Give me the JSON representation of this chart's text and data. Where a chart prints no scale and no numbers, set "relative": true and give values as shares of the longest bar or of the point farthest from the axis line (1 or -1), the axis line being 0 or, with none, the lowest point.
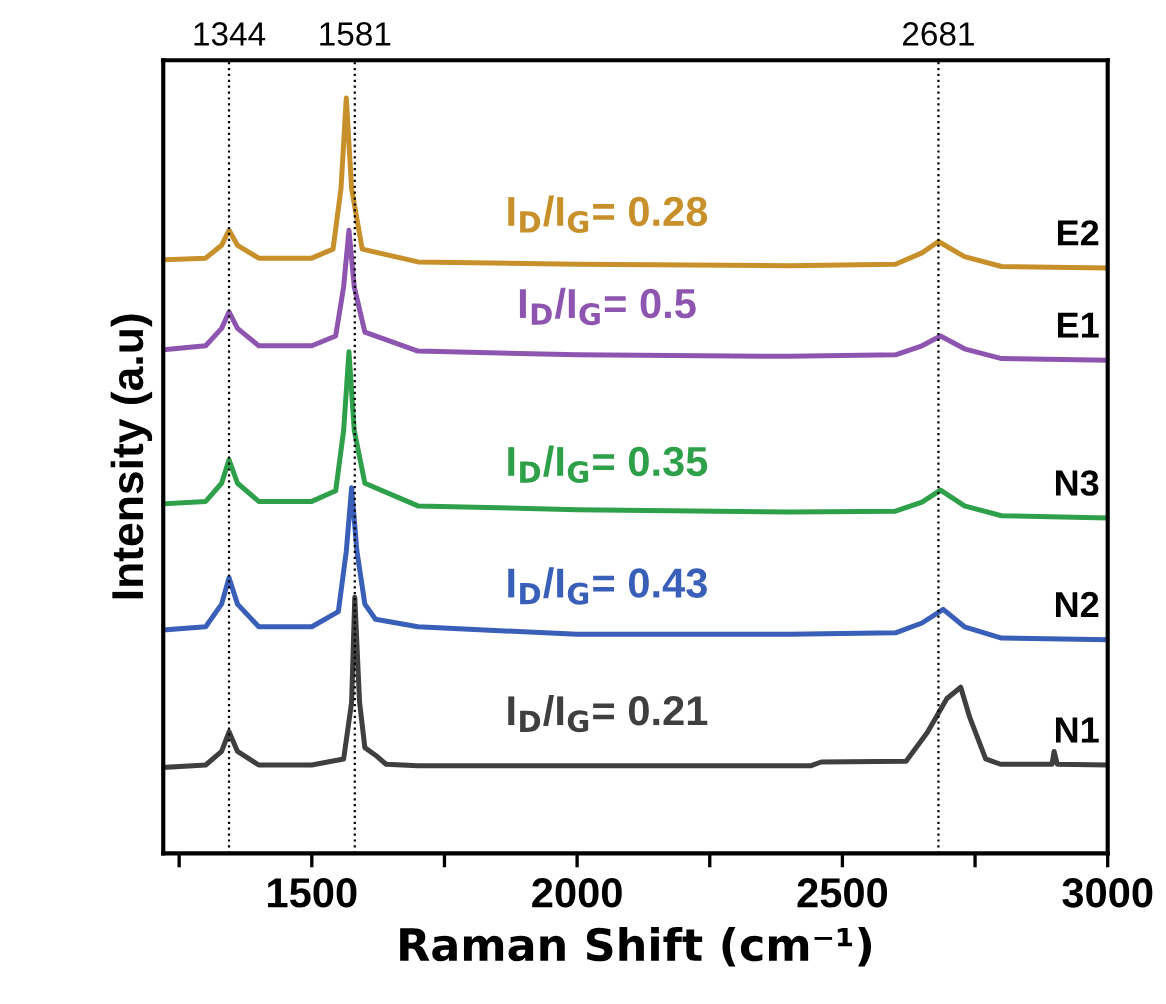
{
  "chart_data": {
    "type": "line",
    "relative": true,
    "xlabel": "Raman Shift (cm⁻¹)",
    "ylabel": "Intensity (a.u)",
    "xlim": [
      1220,
      3000
    ],
    "xticks": [
      {
        "value": 1250,
        "label": null
      },
      1500,
      {
        "value": 1750,
        "label": null
      },
      2000,
      {
        "value": 2250,
        "label": null
      },
      2500,
      {
        "value": 2750,
        "label": null
      },
      3000
    ],
    "tick_labels": "x",
    "grid": false,
    "legend": false,
    "line_style": "solid",
    "marker": "none",
    "ref_lines": [
      {
        "axis": "x",
        "value": 1344,
        "label": "1344",
        "line_style": "dotted",
        "color": "#000000"
      },
      {
        "axis": "x",
        "value": 1581,
        "label": "1581",
        "line_style": "dotted",
        "color": "#000000"
      },
      {
        "axis": "x",
        "value": 2681,
        "label": "2681",
        "line_style": "dotted",
        "color": "#000000"
      }
    ],
    "series": [
      {
        "name": "E2",
        "color": "#c8902a",
        "x": [
          1225,
          1300,
          1330,
          1344,
          1360,
          1400,
          1500,
          1540,
          1555,
          1565,
          1575,
          1595,
          1700,
          2000,
          2400,
          2600,
          2650,
          2681,
          2730,
          2800,
          3000
        ],
        "values": [
          0.786,
          0.788,
          0.805,
          0.825,
          0.805,
          0.788,
          0.788,
          0.8,
          0.88,
          1.0,
          0.88,
          0.8,
          0.783,
          0.78,
          0.778,
          0.78,
          0.795,
          0.81,
          0.79,
          0.777,
          0.775
        ]
      },
      {
        "name": "E1",
        "color": "#8e55b0",
        "x": [
          1225,
          1300,
          1330,
          1344,
          1360,
          1400,
          1500,
          1545,
          1560,
          1570,
          1580,
          1600,
          1700,
          2000,
          2400,
          2600,
          2650,
          2685,
          2730,
          2800,
          3000
        ],
        "values": [
          0.667,
          0.672,
          0.695,
          0.717,
          0.695,
          0.672,
          0.672,
          0.685,
          0.75,
          0.825,
          0.75,
          0.69,
          0.665,
          0.66,
          0.658,
          0.66,
          0.672,
          0.685,
          0.668,
          0.655,
          0.653
        ]
      },
      {
        "name": "N3",
        "color": "#2ea04a",
        "x": [
          1225,
          1300,
          1330,
          1344,
          1360,
          1400,
          1500,
          1545,
          1560,
          1570,
          1580,
          1600,
          1700,
          2000,
          2400,
          2600,
          2650,
          2685,
          2730,
          2800,
          3000
        ],
        "values": [
          0.463,
          0.466,
          0.49,
          0.521,
          0.49,
          0.466,
          0.466,
          0.48,
          0.56,
          0.664,
          0.56,
          0.49,
          0.46,
          0.455,
          0.452,
          0.453,
          0.465,
          0.481,
          0.46,
          0.447,
          0.444
        ]
      },
      {
        "name": "N2",
        "color": "#3a5fb8",
        "x": [
          1225,
          1300,
          1330,
          1344,
          1360,
          1400,
          1500,
          1550,
          1565,
          1575,
          1585,
          1600,
          1620,
          1700,
          2000,
          2400,
          2600,
          2650,
          2690,
          2730,
          2800,
          3000
        ],
        "values": [
          0.296,
          0.3,
          0.33,
          0.365,
          0.33,
          0.3,
          0.3,
          0.32,
          0.4,
          0.484,
          0.4,
          0.33,
          0.31,
          0.3,
          0.29,
          0.29,
          0.292,
          0.305,
          0.323,
          0.3,
          0.285,
          0.283
        ]
      },
      {
        "name": "N1",
        "color": "#3f3f3f",
        "x": [
          1225,
          1300,
          1330,
          1344,
          1360,
          1400,
          1500,
          1560,
          1575,
          1581,
          1590,
          1600,
          1620,
          1640,
          1700,
          2000,
          2440,
          2460,
          2620,
          2660,
          2697,
          2723,
          2740,
          2770,
          2798,
          2895,
          2899,
          2905,
          3000
        ],
        "values": [
          0.114,
          0.117,
          0.135,
          0.161,
          0.135,
          0.117,
          0.117,
          0.125,
          0.2,
          0.339,
          0.2,
          0.14,
          0.13,
          0.118,
          0.116,
          0.116,
          0.116,
          0.121,
          0.122,
          0.16,
          0.205,
          0.22,
          0.18,
          0.125,
          0.118,
          0.118,
          0.135,
          0.118,
          0.117
        ]
      }
    ],
    "annotations": [
      "I$_{D}$/I$_{G}$= 0.28",
      "I$_{D}$/I$_{G}$= 0.5",
      "I$_{D}$/I$_{G}$= 0.35",
      "I$_{D}$/I$_{G}$= 0.43",
      "I$_{D}$/I$_{G}$= 0.21"
    ]
  }
}
